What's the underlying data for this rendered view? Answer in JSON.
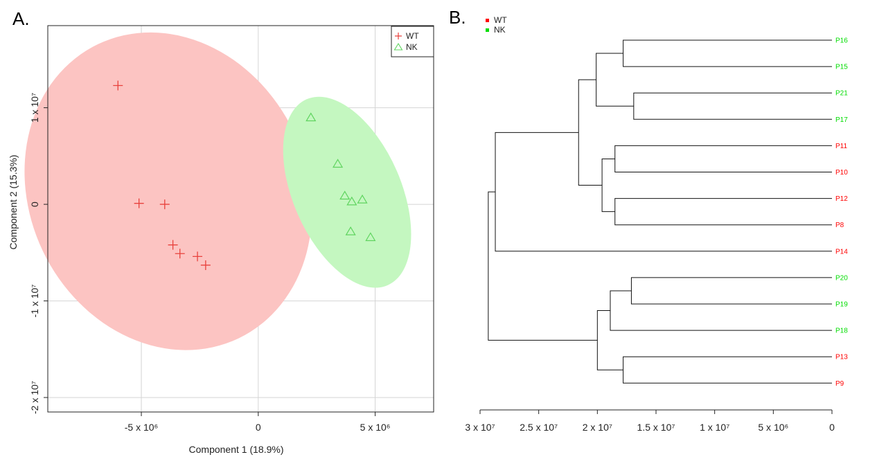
{
  "chart_data": [
    {
      "panel": "A.",
      "type": "scatter",
      "title": "",
      "xlabel": "Component 1 (18.9%)",
      "ylabel": "Component 2 (15.3%)",
      "xlim": [
        -9000000,
        7500000
      ],
      "ylim": [
        -21500000,
        18500000
      ],
      "x_ticks": [
        {
          "value": -5000000,
          "label": "-5 x 10⁶"
        },
        {
          "value": 0,
          "label": "0"
        },
        {
          "value": 5000000,
          "label": "5 x 10⁶"
        }
      ],
      "y_ticks": [
        {
          "value": 10000000,
          "label": "1 x 10⁷"
        },
        {
          "value": 0,
          "label": "0"
        },
        {
          "value": -10000000,
          "label": "-1 x 10⁷"
        },
        {
          "value": -20000000,
          "label": "-2 x 10⁷"
        }
      ],
      "grid": true,
      "legend_position": "top-right",
      "series": [
        {
          "name": "WT",
          "marker": "cross",
          "color": "#e8413c",
          "fill": "#fcc4c2",
          "points": [
            [
              -6000000,
              12300000
            ],
            [
              -5100000,
              100000
            ],
            [
              -4000000,
              0
            ],
            [
              -3650000,
              -4200000
            ],
            [
              -3350000,
              -5100000
            ],
            [
              -2600000,
              -5400000
            ],
            [
              -2250000,
              -6300000
            ]
          ],
          "ellipse": {
            "cx": -3850000,
            "cy": 1350000,
            "rx_deg": 45000000,
            "rx": 25000000,
            "ry": 3300000,
            "angle_deg": -58
          }
        },
        {
          "name": "NK",
          "marker": "triangle",
          "color": "#5fd45f",
          "fill": "#c4f7c0",
          "points": [
            [
              2250000,
              9000000
            ],
            [
              3400000,
              4200000
            ],
            [
              3700000,
              900000
            ],
            [
              4000000,
              300000
            ],
            [
              4450000,
              500000
            ],
            [
              3950000,
              -2800000
            ],
            [
              4800000,
              -3400000
            ]
          ],
          "ellipse": {
            "cx": 3800000,
            "cy": 1250000,
            "rx": 15000000,
            "ry": 1700000
          }
        }
      ]
    },
    {
      "panel": "B.",
      "type": "dendrogram",
      "title": "",
      "xlabel": "",
      "xlim": [
        30000000,
        0
      ],
      "x_ticks": [
        {
          "value": 30000000,
          "label": "3 x 10⁷"
        },
        {
          "value": 25000000,
          "label": "2.5 x 10⁷"
        },
        {
          "value": 20000000,
          "label": "2 x 10⁷"
        },
        {
          "value": 15000000,
          "label": "1.5 x 10⁷"
        },
        {
          "value": 10000000,
          "label": "1 x 10⁷"
        },
        {
          "value": 5000000,
          "label": "5 x 10⁶"
        },
        {
          "value": 0,
          "label": "0"
        }
      ],
      "legend_position": "top-left",
      "legend": [
        {
          "name": "WT",
          "color": "#ff0000"
        },
        {
          "name": "NK",
          "color": "#00dd00"
        }
      ],
      "leaves": [
        {
          "label": "P16",
          "group": "NK"
        },
        {
          "label": "P15",
          "group": "NK"
        },
        {
          "label": "P21",
          "group": "NK"
        },
        {
          "label": "P17",
          "group": "NK"
        },
        {
          "label": "P11",
          "group": "WT"
        },
        {
          "label": "P10",
          "group": "WT"
        },
        {
          "label": "P12",
          "group": "WT"
        },
        {
          "label": "P8",
          "group": "WT"
        },
        {
          "label": "P14",
          "group": "WT"
        },
        {
          "label": "P20",
          "group": "NK"
        },
        {
          "label": "P19",
          "group": "NK"
        },
        {
          "label": "P18",
          "group": "NK"
        },
        {
          "label": "P13",
          "group": "WT"
        },
        {
          "label": "P9",
          "group": "WT"
        }
      ],
      "merges": [
        {
          "a": "L0",
          "b": "L1",
          "height": 17800000
        },
        {
          "a": "L2",
          "b": "L3",
          "height": 16900000
        },
        {
          "a": "M0",
          "b": "M1",
          "height": 20100000
        },
        {
          "a": "L4",
          "b": "L5",
          "height": 18500000
        },
        {
          "a": "L6",
          "b": "L7",
          "height": 18500000
        },
        {
          "a": "M3",
          "b": "M4",
          "height": 19600000
        },
        {
          "a": "M2",
          "b": "M5",
          "height": 21600000
        },
        {
          "a": "M6",
          "b": "L8",
          "height": 28700000
        },
        {
          "a": "L9",
          "b": "L10",
          "height": 17100000
        },
        {
          "a": "M8",
          "b": "L11",
          "height": 18900000
        },
        {
          "a": "L12",
          "b": "L13",
          "height": 17800000
        },
        {
          "a": "M9",
          "b": "M10",
          "height": 20000000
        },
        {
          "a": "M7",
          "b": "M11",
          "height": 29300000
        }
      ]
    }
  ],
  "colors": {
    "wt_text": "#ff0000",
    "nk_text": "#00dd00"
  }
}
